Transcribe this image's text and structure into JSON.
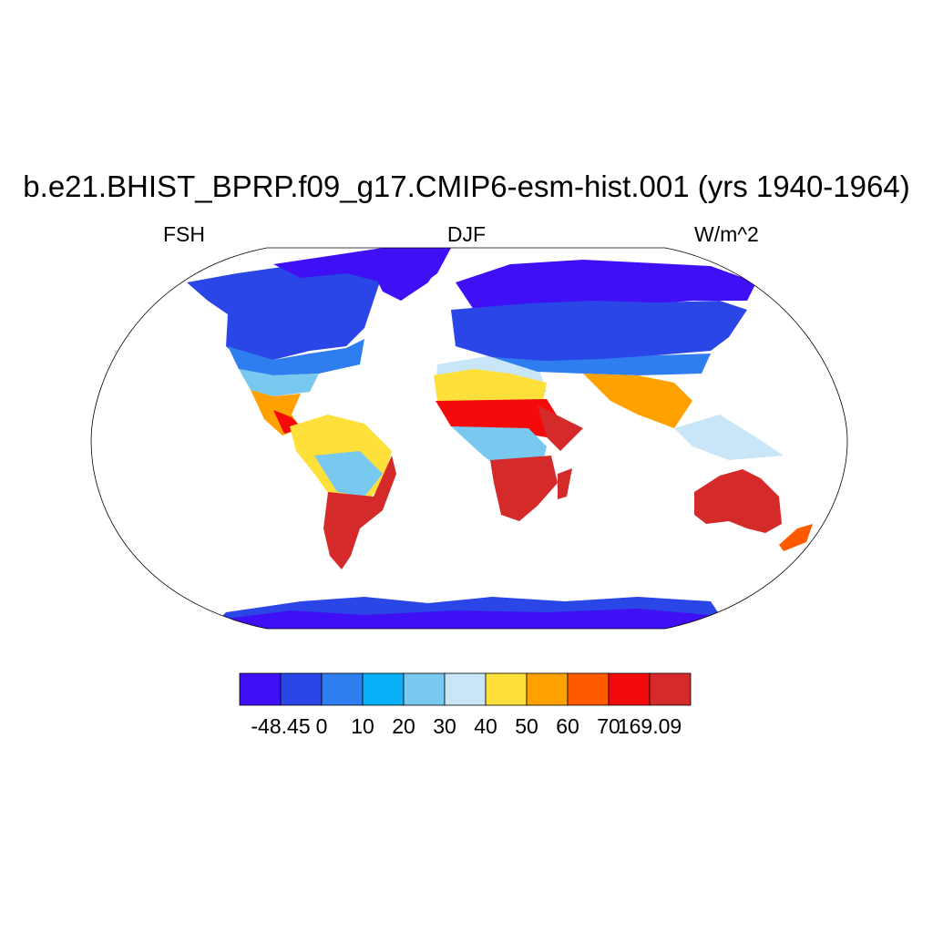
{
  "title": "b.e21.BHIST_BPRP.f09_g17.CMIP6-esm-hist.001 (yrs 1940-1964)",
  "left_label": "FSH",
  "center_label": "DJF",
  "right_label": "W/m^2",
  "colorbar": {
    "colors": [
      "#3f10f5",
      "#2a46e6",
      "#2e7ef0",
      "#0ab0f8",
      "#78c8f0",
      "#c8e6f8",
      "#ffe03a",
      "#ffa200",
      "#ff5a00",
      "#f40a0a",
      "#d42a2a"
    ],
    "labels": [
      "-48.45",
      "0",
      "10",
      "20",
      "30",
      "40",
      "50",
      "60",
      "70",
      "169.09"
    ]
  },
  "map": {
    "projection": "robinson",
    "field": "FSH",
    "season": "DJF",
    "units": "W/m^2",
    "min": -48.45,
    "max": 169.09,
    "land_fill_colors": {
      "polar": "#3f10f5",
      "cold": "#2a46e6",
      "cool": "#2e7ef0",
      "mild": "#0ab0f8",
      "temperate": "#78c8f0",
      "pale": "#c8e6f8",
      "warm": "#ffe03a",
      "hot": "#ffa200",
      "hotter": "#ff5a00",
      "very_hot": "#f40a0a",
      "extreme": "#d42a2a"
    }
  }
}
